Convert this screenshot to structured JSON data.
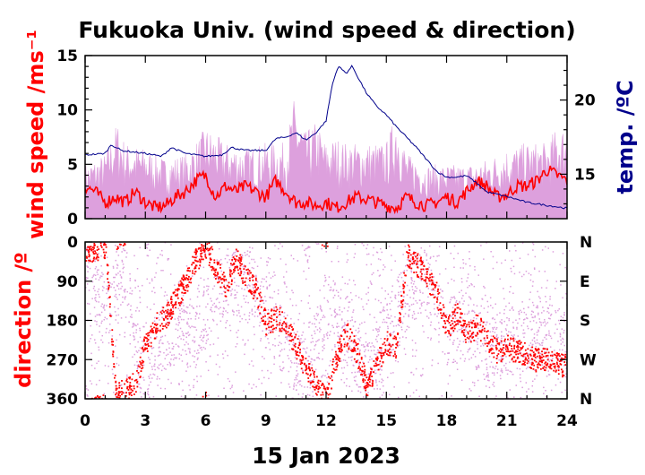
{
  "chart_data": [
    {
      "type": "line",
      "title": "Fukuoka Univ. (wind speed & direction)",
      "ylabel": "wind speed /ms⁻¹",
      "ylabel_right": "temp. /ºC",
      "ylim": [
        0,
        15
      ],
      "ylim_right": [
        12,
        23
      ],
      "yticks": [
        "0",
        "5",
        "10",
        "15"
      ],
      "yticks_right": [
        "15",
        "20"
      ],
      "series": [
        {
          "role": "gust wind speed",
          "color": "#dda0dd",
          "x": [
            0,
            1,
            1.6,
            2,
            3,
            4,
            5,
            5.5,
            6,
            7,
            8,
            9,
            10,
            10.4,
            11,
            11.5,
            12,
            12.5,
            13,
            13.5,
            14,
            15,
            15.5,
            16,
            17,
            18,
            19,
            20,
            21,
            22,
            23,
            23.5,
            24
          ],
          "y": [
            5,
            6,
            9,
            7,
            6.5,
            5.5,
            6,
            7,
            8.5,
            7,
            6.5,
            7,
            7,
            11,
            8,
            9,
            7,
            7.5,
            7,
            7,
            7,
            7,
            10,
            6,
            5,
            5,
            5,
            5.5,
            6.5,
            7,
            7,
            8.5,
            8.5
          ]
        },
        {
          "role": "mean wind speed",
          "color": "#ff0000",
          "x": [
            0,
            0.5,
            1,
            1.5,
            2,
            2.5,
            3,
            3.5,
            4,
            4.5,
            5,
            5.5,
            6,
            6.5,
            7,
            7.5,
            8,
            8.5,
            9,
            9.5,
            10,
            10.5,
            11,
            11.5,
            12,
            12.5,
            13,
            13.5,
            14,
            14.5,
            15,
            15.5,
            16,
            16.5,
            17,
            17.5,
            18,
            18.5,
            19,
            19.5,
            20,
            20.5,
            21,
            21.5,
            22,
            22.5,
            23,
            23.5,
            24
          ],
          "y": [
            3,
            2.5,
            1.5,
            2,
            1.5,
            2.5,
            1.5,
            1,
            1.2,
            2,
            2.5,
            3.5,
            4,
            2,
            3,
            2.5,
            3,
            2.5,
            2,
            3.5,
            2.5,
            1.5,
            1.5,
            1.2,
            1.5,
            1,
            1.5,
            2,
            1.8,
            1.5,
            1.2,
            1,
            2,
            1.5,
            1.2,
            1.5,
            2,
            1.5,
            2.5,
            3.5,
            3,
            2,
            2.2,
            3,
            3,
            3.5,
            4.5,
            4,
            3.5
          ]
        },
        {
          "role": "temperature (right axis)",
          "color": "#00008b",
          "x": [
            0,
            1,
            1.3,
            1.8,
            3,
            3.8,
            4.3,
            5,
            6,
            6.8,
            7.3,
            8,
            9,
            9.5,
            10,
            10.5,
            11,
            11.5,
            12,
            12.3,
            12.6,
            13,
            13.3,
            13.6,
            14,
            14.5,
            15,
            15.5,
            16,
            16.5,
            17,
            17.5,
            18,
            18.5,
            19,
            19.5,
            20,
            21,
            22,
            23,
            24
          ],
          "y": [
            16.3,
            16.4,
            17,
            16.6,
            16.4,
            16.2,
            16.8,
            16.4,
            16.2,
            16.3,
            16.8,
            16.6,
            16.6,
            17.4,
            17.5,
            17.8,
            17.3,
            17.8,
            18.6,
            21,
            22.3,
            21.8,
            22.3,
            21.5,
            20.5,
            19.6,
            19,
            18.2,
            17.5,
            16.8,
            16,
            15.2,
            14.8,
            14.8,
            14.9,
            14.4,
            13.8,
            13.5,
            13.1,
            12.9,
            12.7
          ]
        }
      ]
    },
    {
      "type": "scatter",
      "ylabel": "direction /º",
      "xlabel": "15 Jan 2023",
      "xlim": [
        0,
        24
      ],
      "xticks": [
        "0",
        "3",
        "6",
        "9",
        "12",
        "15",
        "18",
        "21",
        "24"
      ],
      "ylim": [
        0,
        360
      ],
      "y_inverted": true,
      "yticks": [
        "0",
        "90",
        "180",
        "270",
        "360"
      ],
      "yticks_right": [
        "N",
        "E",
        "S",
        "W",
        "N"
      ],
      "series": [
        {
          "role": "gust direction",
          "color": "#dda0dd",
          "x": [
            0,
            1,
            2,
            2.5,
            3,
            4,
            5,
            6,
            7,
            8,
            9,
            10,
            10.5,
            11,
            12,
            13,
            14,
            15,
            16,
            17,
            18,
            19,
            20,
            21,
            22,
            23,
            24
          ],
          "y": [
            60,
            150,
            60,
            250,
            320,
            200,
            210,
            180,
            80,
            100,
            150,
            240,
            270,
            330,
            150,
            200,
            310,
            200,
            120,
            90,
            210,
            180,
            260,
            230,
            220,
            200,
            240
          ]
        },
        {
          "role": "mean direction",
          "color": "#ff0000",
          "x": [
            0,
            0.5,
            1,
            1.5,
            2,
            2.5,
            3,
            3.5,
            4,
            4.5,
            5,
            5.5,
            6,
            6.5,
            7,
            7.5,
            8,
            8.5,
            9,
            9.5,
            10,
            10.5,
            11,
            11.5,
            12,
            12.5,
            13,
            13.5,
            14,
            14.5,
            15,
            15.5,
            16,
            16.5,
            17,
            17.5,
            18,
            18.5,
            19,
            19.5,
            20,
            20.5,
            21,
            21.5,
            22,
            22.5,
            23,
            23.5,
            24
          ],
          "y": [
            30,
            20,
            10,
            350,
            340,
            320,
            230,
            190,
            170,
            130,
            90,
            40,
            10,
            60,
            100,
            40,
            80,
            110,
            190,
            170,
            190,
            240,
            290,
            330,
            350,
            260,
            210,
            250,
            330,
            280,
            230,
            240,
            30,
            50,
            80,
            120,
            200,
            160,
            210,
            190,
            220,
            250,
            240,
            250,
            260,
            270,
            270,
            280,
            280
          ]
        }
      ]
    }
  ]
}
